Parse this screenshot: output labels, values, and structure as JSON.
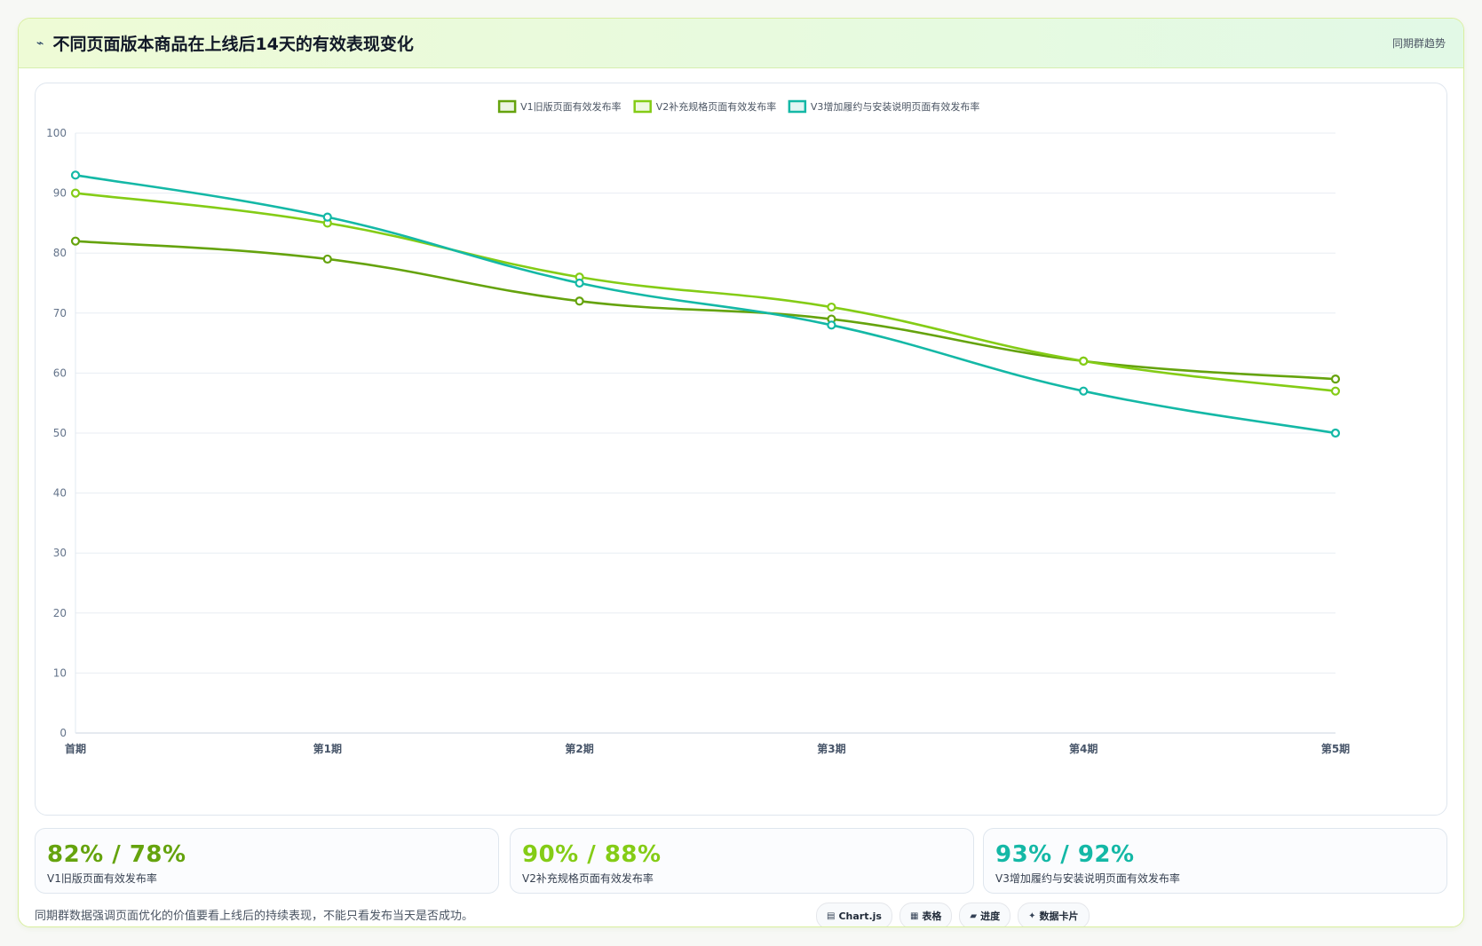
{
  "header": {
    "icon": "lightning-icon",
    "title": "不同页面版本商品在上线后14天的有效表现变化",
    "badge": "同期群趋势"
  },
  "chart_data": {
    "type": "line",
    "categories": [
      "首期",
      "第1期",
      "第2期",
      "第3期",
      "第4期",
      "第5期"
    ],
    "ylim": [
      0,
      100
    ],
    "yticks": [
      0,
      10,
      20,
      30,
      40,
      50,
      60,
      70,
      80,
      90,
      100
    ],
    "grid": true,
    "legend_position": "top-center",
    "series": [
      {
        "name": "V1旧版页面有效发布率",
        "color": "#65a30d",
        "values": [
          82,
          79,
          72,
          69,
          62,
          59
        ]
      },
      {
        "name": "V2补充规格页面有效发布率",
        "color": "#84cc16",
        "values": [
          90,
          85,
          76,
          71,
          62,
          57
        ]
      },
      {
        "name": "V3增加履约与安装说明页面有效发布率",
        "color": "#14b8a6",
        "values": [
          93,
          86,
          75,
          68,
          57,
          50
        ]
      }
    ]
  },
  "stats": [
    {
      "value": "82% / 78%",
      "label": "V1旧版页面有效发布率",
      "color": "#65a30d"
    },
    {
      "value": "90% / 88%",
      "label": "V2补充规格页面有效发布率",
      "color": "#84cc16"
    },
    {
      "value": "93% / 92%",
      "label": "V3增加履约与安装说明页面有效发布率",
      "color": "#14b8a6"
    }
  ],
  "footer": {
    "note": "同期群数据强调页面优化的价值要看上线后的持续表现，不能只看发布当天是否成功。",
    "pills": [
      {
        "icon": "chart-icon",
        "glyph": "▤",
        "label": "Chart.js"
      },
      {
        "icon": "table-icon",
        "glyph": "▦",
        "label": "表格"
      },
      {
        "icon": "progress-icon",
        "glyph": "▰",
        "label": "进度"
      },
      {
        "icon": "sparkle-icon",
        "glyph": "✦",
        "label": "数据卡片"
      }
    ]
  }
}
